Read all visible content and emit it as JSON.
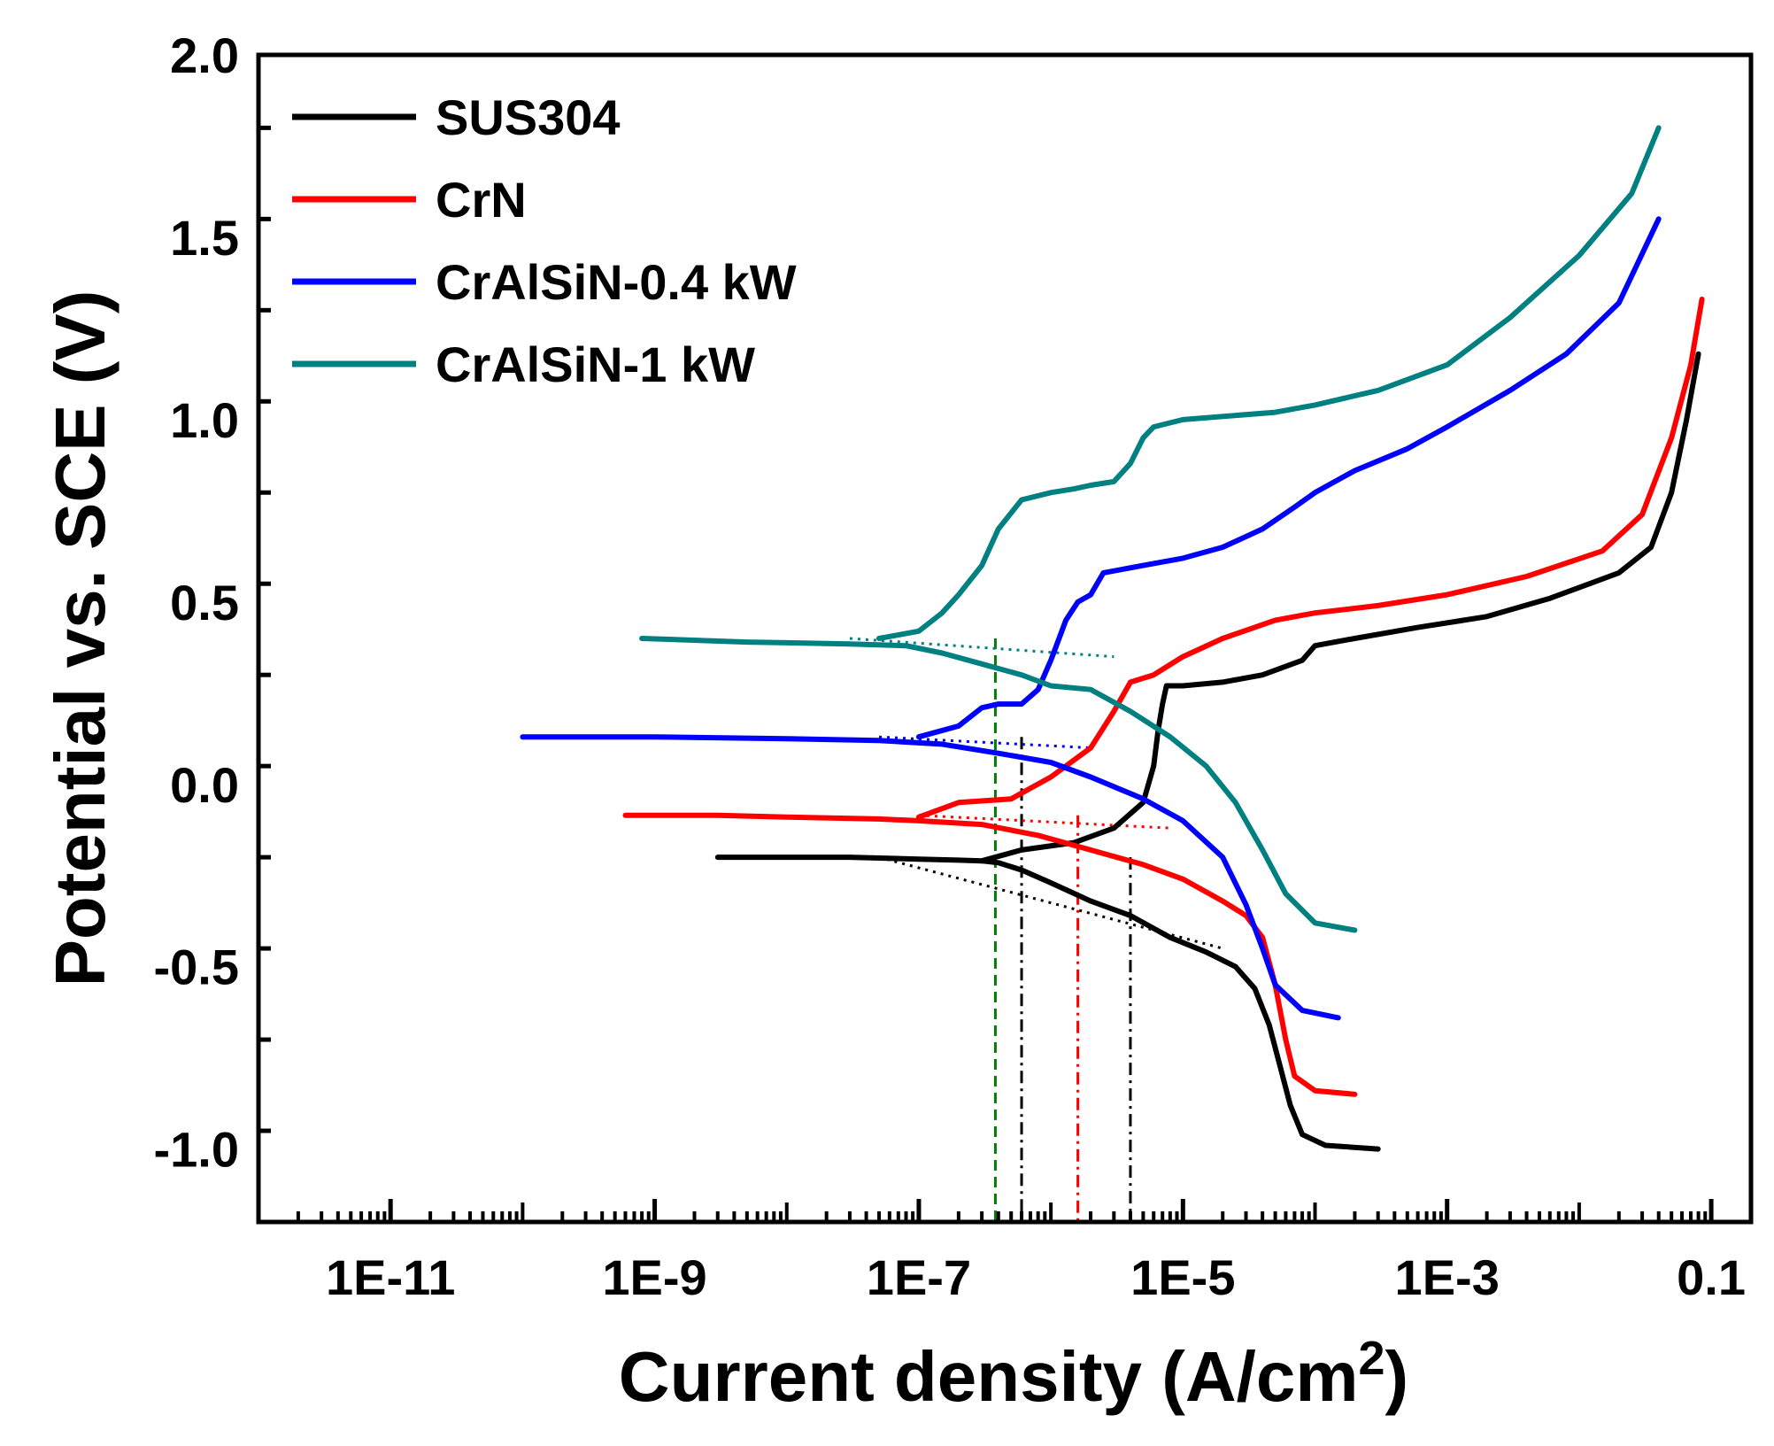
{
  "chart_data": {
    "type": "line",
    "xscale": "log",
    "xlim": [
      1e-12,
      0.2
    ],
    "ylim": [
      -1.2,
      2.0
    ],
    "xlabel": "Current density (A/cm",
    "xlabel_sup": "2",
    "xlabel_end": ")",
    "ylabel": "Potential vs. SCE (V)",
    "xticks": [
      {
        "value": 1e-11,
        "label": "1E-11"
      },
      {
        "value": 1e-09,
        "label": "1E-9"
      },
      {
        "value": 1e-07,
        "label": "1E-7"
      },
      {
        "value": 1e-05,
        "label": "1E-5"
      },
      {
        "value": 0.001,
        "label": "1E-3"
      },
      {
        "value": 0.1,
        "label": "0.1"
      }
    ],
    "yticks": [
      {
        "value": -1.0,
        "label": "-1.0"
      },
      {
        "value": -0.5,
        "label": "-0.5"
      },
      {
        "value": 0.0,
        "label": "0.0"
      },
      {
        "value": 0.5,
        "label": "0.5"
      },
      {
        "value": 1.0,
        "label": "1.0"
      },
      {
        "value": 1.5,
        "label": "1.5"
      },
      {
        "value": 2.0,
        "label": "2.0"
      }
    ],
    "legend_position": "top-left",
    "series": [
      {
        "name": "SUS304",
        "color": "#000000",
        "points": [
          [
            3e-09,
            -0.2
          ],
          [
            1e-08,
            -0.2
          ],
          [
            3e-08,
            -0.2
          ],
          [
            1e-07,
            -0.205
          ],
          [
            2e-07,
            -0.208
          ],
          [
            3e-07,
            -0.21
          ],
          [
            4e-07,
            -0.215
          ],
          [
            6e-07,
            -0.235
          ],
          [
            1e-06,
            -0.27
          ],
          [
            2e-06,
            -0.32
          ],
          [
            4e-06,
            -0.36
          ],
          [
            8e-06,
            -0.42
          ],
          [
            1.5e-05,
            -0.46
          ],
          [
            2.5e-05,
            -0.5
          ],
          [
            3.5e-05,
            -0.56
          ],
          [
            4.5e-05,
            -0.66
          ],
          [
            5.5e-05,
            -0.78
          ],
          [
            6.5e-05,
            -0.88
          ],
          [
            8e-05,
            -0.96
          ],
          [
            0.00012,
            -0.99
          ],
          [
            0.0003,
            -1.0
          ]
        ],
        "anodic": [
          [
            3e-07,
            -0.21
          ],
          [
            6e-07,
            -0.18
          ],
          [
            1.5e-06,
            -0.16
          ],
          [
            3e-06,
            -0.12
          ],
          [
            5e-06,
            -0.05
          ],
          [
            6e-06,
            0.05
          ],
          [
            6.5e-06,
            0.15
          ],
          [
            7e-06,
            0.22
          ],
          [
            7.5e-06,
            0.27
          ],
          [
            1e-05,
            0.27
          ],
          [
            2e-05,
            0.28
          ],
          [
            4e-05,
            0.3
          ],
          [
            8e-05,
            0.34
          ],
          [
            0.0001,
            0.38
          ],
          [
            0.0002,
            0.4
          ],
          [
            0.0006,
            0.43
          ],
          [
            0.002,
            0.46
          ],
          [
            0.006,
            0.51
          ],
          [
            0.02,
            0.58
          ],
          [
            0.035,
            0.65
          ],
          [
            0.05,
            0.8
          ],
          [
            0.065,
            1.0
          ],
          [
            0.08,
            1.18
          ]
        ]
      },
      {
        "name": "CrN",
        "color": "#ff0000",
        "points": [
          [
            6e-10,
            -0.085
          ],
          [
            3e-09,
            -0.085
          ],
          [
            1e-08,
            -0.09
          ],
          [
            5e-08,
            -0.095
          ],
          [
            1e-07,
            -0.1
          ],
          [
            3e-07,
            -0.11
          ],
          [
            8e-07,
            -0.14
          ],
          [
            2e-06,
            -0.18
          ],
          [
            5e-06,
            -0.22
          ],
          [
            1e-05,
            -0.26
          ],
          [
            2e-05,
            -0.32
          ],
          [
            3e-05,
            -0.36
          ],
          [
            4e-05,
            -0.42
          ],
          [
            5e-05,
            -0.55
          ],
          [
            6e-05,
            -0.7
          ],
          [
            7e-05,
            -0.8
          ],
          [
            0.0001,
            -0.84
          ],
          [
            0.0002,
            -0.85
          ]
        ],
        "anodic": [
          [
            1e-07,
            -0.09
          ],
          [
            2e-07,
            -0.05
          ],
          [
            5e-07,
            -0.04
          ],
          [
            1e-06,
            0.02
          ],
          [
            2e-06,
            0.1
          ],
          [
            3e-06,
            0.2
          ],
          [
            4e-06,
            0.28
          ],
          [
            6e-06,
            0.3
          ],
          [
            1e-05,
            0.35
          ],
          [
            2e-05,
            0.4
          ],
          [
            5e-05,
            0.45
          ],
          [
            0.0001,
            0.47
          ],
          [
            0.0003,
            0.49
          ],
          [
            0.001,
            0.52
          ],
          [
            0.004,
            0.57
          ],
          [
            0.015,
            0.64
          ],
          [
            0.03,
            0.74
          ],
          [
            0.05,
            0.95
          ],
          [
            0.07,
            1.15
          ],
          [
            0.085,
            1.33
          ]
        ]
      },
      {
        "name": "CrAlSiN-0.4 kW",
        "color": "#0000ff",
        "points": [
          [
            1e-10,
            0.13
          ],
          [
            1e-09,
            0.13
          ],
          [
            1e-08,
            0.125
          ],
          [
            5e-08,
            0.12
          ],
          [
            1.5e-07,
            0.11
          ],
          [
            4e-07,
            0.085
          ],
          [
            1e-06,
            0.06
          ],
          [
            2e-06,
            0.02
          ],
          [
            5e-06,
            -0.04
          ],
          [
            1e-05,
            -0.1
          ],
          [
            2e-05,
            -0.2
          ],
          [
            3e-05,
            -0.33
          ],
          [
            4e-05,
            -0.45
          ],
          [
            5e-05,
            -0.55
          ],
          [
            8e-05,
            -0.62
          ],
          [
            0.00015,
            -0.64
          ]
        ],
        "anodic": [
          [
            1e-07,
            0.13
          ],
          [
            2e-07,
            0.16
          ],
          [
            3e-07,
            0.21
          ],
          [
            4e-07,
            0.22
          ],
          [
            6e-07,
            0.22
          ],
          [
            8e-07,
            0.26
          ],
          [
            1e-06,
            0.34
          ],
          [
            1.3e-06,
            0.45
          ],
          [
            1.6e-06,
            0.5
          ],
          [
            2e-06,
            0.52
          ],
          [
            2.5e-06,
            0.58
          ],
          [
            5e-06,
            0.6
          ],
          [
            1e-05,
            0.62
          ],
          [
            2e-05,
            0.65
          ],
          [
            4e-05,
            0.7
          ],
          [
            7e-05,
            0.76
          ],
          [
            0.0001,
            0.8
          ],
          [
            0.0002,
            0.86
          ],
          [
            0.0005,
            0.92
          ],
          [
            0.001,
            0.98
          ],
          [
            0.003,
            1.08
          ],
          [
            0.008,
            1.18
          ],
          [
            0.02,
            1.32
          ],
          [
            0.04,
            1.55
          ]
        ]
      },
      {
        "name": "CrAlSiN-1 kW",
        "color": "#008080",
        "points": [
          [
            8e-10,
            0.4
          ],
          [
            5e-09,
            0.39
          ],
          [
            3e-08,
            0.385
          ],
          [
            8e-08,
            0.38
          ],
          [
            1.5e-07,
            0.36
          ],
          [
            3e-07,
            0.33
          ],
          [
            6e-07,
            0.3
          ],
          [
            1e-06,
            0.27
          ],
          [
            2e-06,
            0.26
          ],
          [
            4e-06,
            0.2
          ],
          [
            8e-06,
            0.13
          ],
          [
            1.5e-05,
            0.05
          ],
          [
            2.5e-05,
            -0.05
          ],
          [
            4e-05,
            -0.18
          ],
          [
            6e-05,
            -0.3
          ],
          [
            0.0001,
            -0.38
          ],
          [
            0.0002,
            -0.4
          ]
        ],
        "anodic": [
          [
            5e-08,
            0.4
          ],
          [
            1e-07,
            0.42
          ],
          [
            1.5e-07,
            0.47
          ],
          [
            2e-07,
            0.52
          ],
          [
            3e-07,
            0.6
          ],
          [
            4e-07,
            0.7
          ],
          [
            6e-07,
            0.78
          ],
          [
            1e-06,
            0.8
          ],
          [
            1.5e-06,
            0.81
          ],
          [
            2e-06,
            0.82
          ],
          [
            3e-06,
            0.83
          ],
          [
            4e-06,
            0.88
          ],
          [
            5e-06,
            0.95
          ],
          [
            6e-06,
            0.98
          ],
          [
            1e-05,
            1.0
          ],
          [
            5e-05,
            1.02
          ],
          [
            0.0001,
            1.04
          ],
          [
            0.0003,
            1.08
          ],
          [
            0.001,
            1.15
          ],
          [
            0.003,
            1.28
          ],
          [
            0.01,
            1.45
          ],
          [
            0.025,
            1.62
          ],
          [
            0.04,
            1.8
          ]
        ]
      }
    ],
    "tafel_markers": [
      {
        "color": "#008000",
        "icorr": 3.8e-07,
        "ecorr": 0.4,
        "style": "dashed"
      },
      {
        "color": "#000000",
        "icorr": 6e-07,
        "ecorr": 0.13,
        "style": "dashdot"
      },
      {
        "color": "#ff0000",
        "icorr": 1.6e-06,
        "ecorr": -0.085,
        "style": "dashdot"
      },
      {
        "color": "#000000",
        "icorr": 4e-06,
        "ecorr": -0.2,
        "style": "dashdot"
      }
    ],
    "tafel_fit_lines": [
      {
        "color": "#008080",
        "points": [
          [
            3e-08,
            0.4
          ],
          [
            3e-06,
            0.35
          ]
        ]
      },
      {
        "color": "#0000ff",
        "points": [
          [
            5e-08,
            0.13
          ],
          [
            2e-06,
            0.1
          ]
        ]
      },
      {
        "color": "#ff0000",
        "points": [
          [
            1e-07,
            -0.085
          ],
          [
            8e-06,
            -0.12
          ]
        ]
      },
      {
        "color": "#000000",
        "points": [
          [
            5e-08,
            -0.2
          ],
          [
            2e-05,
            -0.45
          ]
        ]
      }
    ]
  }
}
